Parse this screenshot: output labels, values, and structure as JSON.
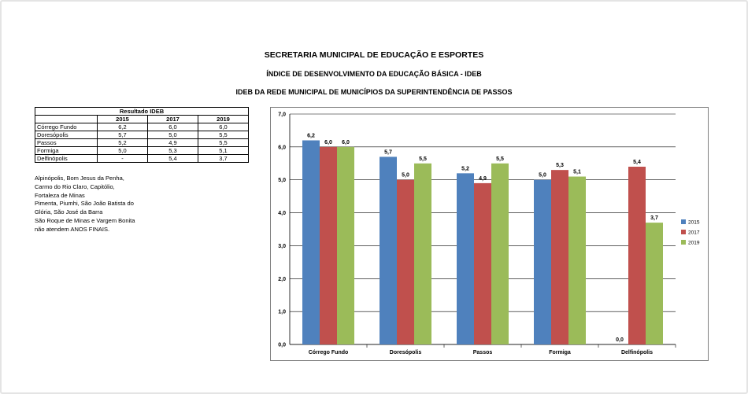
{
  "header": {
    "line1": "SECRETARIA MUNICIPAL DE EDUCAÇÃO E ESPORTES",
    "line2": "ÍNDICE DE DESENVOLVIMENTO DA EDUCAÇÃO BÁSICA - IDEB",
    "line3": "IDEB DA REDE MUNICIPAL DE MUNICÍPIOS DA SUPERINTENDÊNCIA DE PASSOS"
  },
  "table": {
    "title": "Resultado IDEB",
    "years": [
      "2015",
      "2017",
      "2019"
    ],
    "rows": [
      {
        "city": "Córrego Fundo",
        "v2015": "6,2",
        "v2017": "6,0",
        "v2019": "6,0"
      },
      {
        "city": "Doresópolis",
        "v2015": "5,7",
        "v2017": "5,0",
        "v2019": "5,5"
      },
      {
        "city": "Passos",
        "v2015": "5,2",
        "v2017": "4,9",
        "v2019": "5,5"
      },
      {
        "city": "Formiga",
        "v2015": "5,0",
        "v2017": "5,3",
        "v2019": "5,1"
      },
      {
        "city": "Delfinópolis",
        "v2015": "-",
        "v2017": "5,4",
        "v2019": "3,7"
      }
    ]
  },
  "note": {
    "lines": [
      "Alpinópolis, Bom Jesus da Penha,",
      "Carmo do Rio Claro, Capitólio,",
      "Fortaleza de Minas",
      "Pimenta, Piumhi, São João Batista do",
      "Glória, São José da Barra",
      "São Roque de Minas e Vargem Bonita",
      "não atendem ANOS FINAIS."
    ]
  },
  "colors": {
    "s2015": "#4f81bd",
    "s2017": "#c0504d",
    "s2019": "#9bbb59",
    "grid": "#000000"
  },
  "chart_data": {
    "type": "bar",
    "categories": [
      "Córrego Fundo",
      "Doresópolis",
      "Passos",
      "Formiga",
      "Delfinópolis"
    ],
    "series": [
      {
        "name": "2015",
        "values": [
          6.2,
          5.7,
          5.2,
          5.0,
          0.0
        ]
      },
      {
        "name": "2017",
        "values": [
          6.0,
          5.0,
          4.9,
          5.3,
          5.4
        ]
      },
      {
        "name": "2019",
        "values": [
          6.0,
          5.5,
          5.5,
          5.1,
          3.7
        ]
      }
    ],
    "ylim": [
      0,
      7
    ],
    "ytick_step": 1,
    "ytick_labels": [
      "0,0",
      "1,0",
      "2,0",
      "3,0",
      "4,0",
      "5,0",
      "6,0",
      "7,0"
    ],
    "data_labels": [
      [
        "6,2",
        "5,7",
        "5,2",
        "5,0",
        "0,0"
      ],
      [
        "6,0",
        "5,0",
        "4,9",
        "5,3",
        "5,4"
      ],
      [
        "6,0",
        "5,5",
        "5,5",
        "5,1",
        "3,7"
      ]
    ],
    "grid": true,
    "legend": "right"
  }
}
